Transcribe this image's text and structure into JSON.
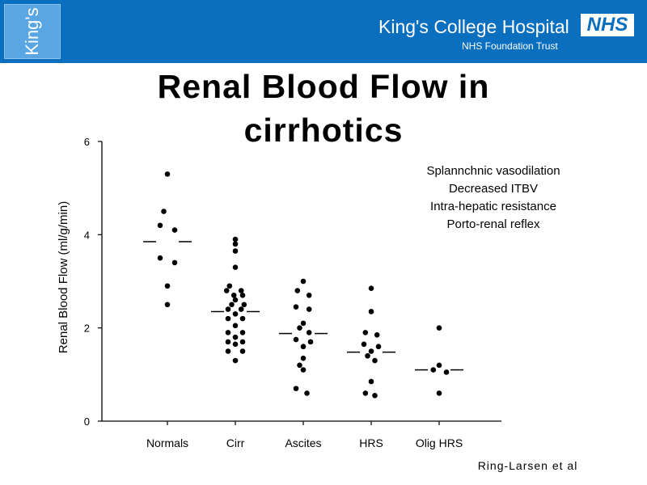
{
  "header": {
    "logo_text": "King's",
    "hospital_name": "King's College Hospital",
    "trust_name": "NHS Foundation Trust",
    "nhs_logo": "NHS",
    "background_color": "#0b6fc0"
  },
  "slide": {
    "title_line1": "Renal Blood Flow in",
    "title_line2": "cirrhotics",
    "annotations": [
      "Splannchnic vasodilation",
      "Decreased ITBV",
      "Intra-hepatic resistance",
      "Porto-renal reflex"
    ],
    "reference": "Ring-Larsen et al"
  },
  "chart_data": {
    "type": "scatter",
    "ylabel": "Renal Blood Flow (ml/g/min)",
    "xlabel": "",
    "ylim": [
      0,
      6
    ],
    "yticks": [
      "0",
      "2",
      "4",
      "6"
    ],
    "categories": [
      "Normals",
      "Cirr",
      "Ascites",
      "HRS",
      "Olig HRS"
    ],
    "medians": [
      3.85,
      2.35,
      1.88,
      1.48,
      1.1
    ],
    "groups": [
      {
        "category": "Normals",
        "points": [
          [
            0,
            5.3
          ],
          [
            -0.05,
            4.5
          ],
          [
            -0.1,
            4.2
          ],
          [
            0.1,
            4.1
          ],
          [
            -0.1,
            3.5
          ],
          [
            0.1,
            3.4
          ],
          [
            0,
            2.9
          ],
          [
            0,
            2.5
          ]
        ]
      },
      {
        "category": "Cirr",
        "points": [
          [
            0,
            3.9
          ],
          [
            0,
            3.8
          ],
          [
            0,
            3.65
          ],
          [
            0,
            3.3
          ],
          [
            -0.08,
            2.9
          ],
          [
            -0.12,
            2.8
          ],
          [
            0.08,
            2.8
          ],
          [
            -0.02,
            2.7
          ],
          [
            0.1,
            2.7
          ],
          [
            0,
            2.6
          ],
          [
            -0.05,
            2.5
          ],
          [
            0.12,
            2.5
          ],
          [
            -0.1,
            2.4
          ],
          [
            0.08,
            2.4
          ],
          [
            0,
            2.3
          ],
          [
            -0.1,
            2.2
          ],
          [
            0.1,
            2.2
          ],
          [
            0,
            2.05
          ],
          [
            -0.1,
            1.9
          ],
          [
            0.1,
            1.9
          ],
          [
            0,
            1.8
          ],
          [
            -0.1,
            1.7
          ],
          [
            0.1,
            1.7
          ],
          [
            0,
            1.65
          ],
          [
            -0.1,
            1.5
          ],
          [
            0.1,
            1.5
          ],
          [
            0,
            1.3
          ]
        ]
      },
      {
        "category": "Ascites",
        "points": [
          [
            0,
            3.0
          ],
          [
            -0.08,
            2.8
          ],
          [
            0.08,
            2.7
          ],
          [
            -0.1,
            2.45
          ],
          [
            0.08,
            2.4
          ],
          [
            0,
            2.1
          ],
          [
            -0.05,
            2.0
          ],
          [
            0.08,
            1.9
          ],
          [
            -0.1,
            1.75
          ],
          [
            0.1,
            1.7
          ],
          [
            0,
            1.6
          ],
          [
            0,
            1.35
          ],
          [
            -0.05,
            1.2
          ],
          [
            0,
            1.1
          ],
          [
            -0.1,
            0.7
          ],
          [
            0.05,
            0.6
          ]
        ]
      },
      {
        "category": "HRS",
        "points": [
          [
            0,
            2.85
          ],
          [
            0,
            2.35
          ],
          [
            -0.08,
            1.9
          ],
          [
            0.08,
            1.85
          ],
          [
            -0.1,
            1.65
          ],
          [
            0.1,
            1.6
          ],
          [
            0,
            1.5
          ],
          [
            -0.05,
            1.4
          ],
          [
            0.05,
            1.3
          ],
          [
            0,
            0.85
          ],
          [
            -0.08,
            0.6
          ],
          [
            0.05,
            0.55
          ]
        ]
      },
      {
        "category": "Olig HRS",
        "points": [
          [
            0,
            2.0
          ],
          [
            0,
            1.2
          ],
          [
            -0.08,
            1.1
          ],
          [
            0.1,
            1.05
          ],
          [
            0,
            0.6
          ]
        ]
      }
    ],
    "grid": false,
    "legend": "none"
  }
}
